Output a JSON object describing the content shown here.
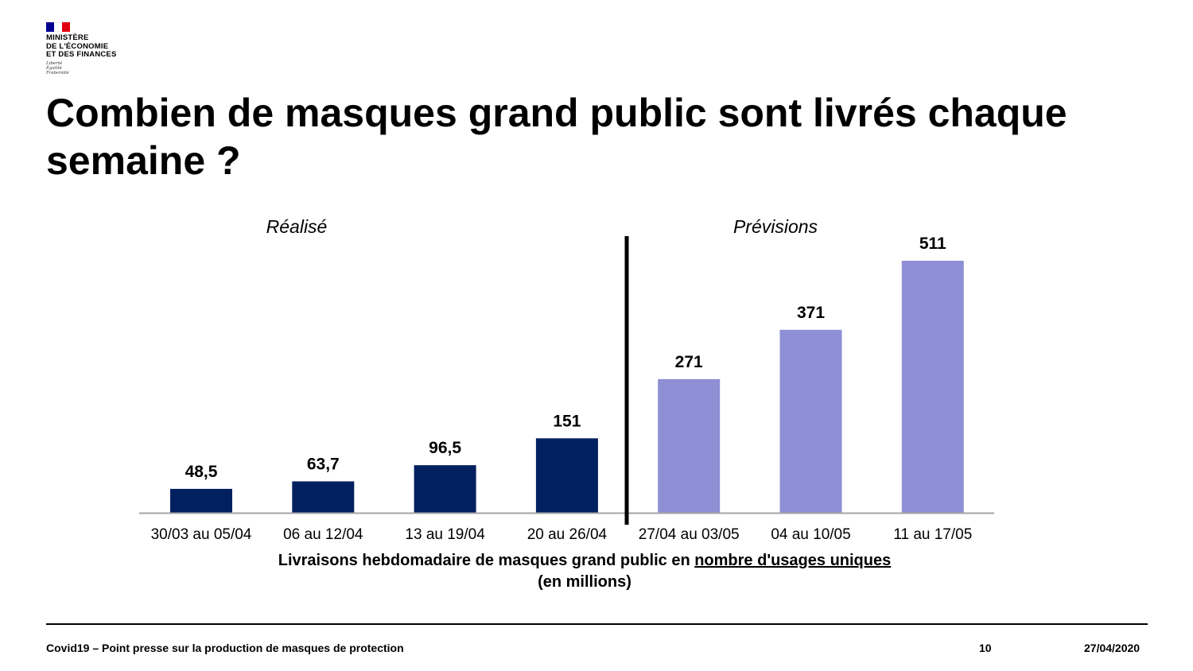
{
  "header": {
    "logo_text": "MINISTÈRE\nDE L'ÉCONOMIE\nET DES FINANCES",
    "logo_motto": "Liberté\nÉgalité\nFraternité"
  },
  "title": "Combien de masques grand public sont livrés chaque semaine  ?",
  "chart_data": {
    "type": "bar",
    "categories": [
      "30/03 au 05/04",
      "06 au 12/04",
      "13 au 19/04",
      "20 au 26/04",
      "27/04 au 03/05",
      "04 au 10/05",
      "11 au 17/05"
    ],
    "values": [
      48.5,
      63.7,
      96.5,
      151,
      271,
      371,
      511
    ],
    "value_labels": [
      "48,5",
      "63,7",
      "96,5",
      "151",
      "271",
      "371",
      "511"
    ],
    "groups": [
      "Réalisé",
      "Réalisé",
      "Réalisé",
      "Réalisé",
      "Prévisions",
      "Prévisions",
      "Prévisions"
    ],
    "section_labels": {
      "realise": "Réalisé",
      "previsions": "Prévisions"
    },
    "colors": {
      "realise": "#002060",
      "previsions": "#8e8fd4",
      "axis": "#a6a6a6",
      "divider": "#000000"
    },
    "xlabel_main": "Livraisons hebdomadaire de masques grand public en ",
    "xlabel_underlined": "nombre d'usages uniques",
    "xlabel_unit": "(en millions)",
    "ylim": [
      0,
      511
    ],
    "grid": false,
    "legend": "none"
  },
  "footer": {
    "left": "Covid19 – Point presse sur la production de masques de protection",
    "page": "10",
    "date": "27/04/2020"
  }
}
